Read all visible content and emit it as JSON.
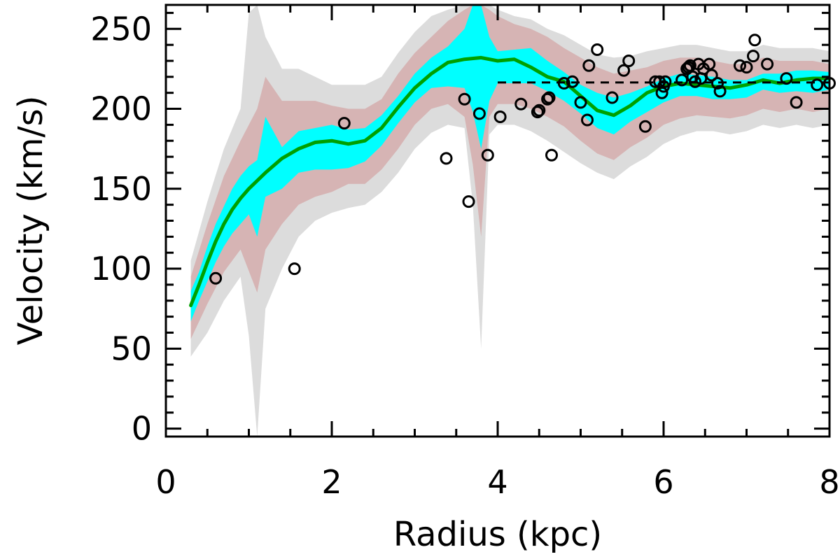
{
  "chart_data": {
    "type": "line",
    "xlabel": "Radius (kpc)",
    "ylabel": "Velocity (km/s)",
    "xlim": [
      0,
      8
    ],
    "ylim": [
      -5,
      265
    ],
    "xticks": [
      0,
      2,
      4,
      6,
      8
    ],
    "yticks": [
      0,
      50,
      100,
      150,
      200,
      250
    ],
    "grid": false,
    "colors": {
      "model_line": "#00a000",
      "band_inner": "#00ffff",
      "band_middle": "#d6b4b4",
      "band_outer": "#dcdcdc",
      "points": "#000000",
      "reference_line": "#000000"
    },
    "model_curve": {
      "x": [
        0.3,
        0.4,
        0.5,
        0.6,
        0.7,
        0.8,
        0.9,
        1.0,
        1.2,
        1.4,
        1.6,
        1.8,
        2.0,
        2.2,
        2.4,
        2.6,
        2.8,
        3.0,
        3.2,
        3.4,
        3.6,
        3.8,
        4.0,
        4.2,
        4.4,
        4.6,
        4.8,
        5.0,
        5.2,
        5.4,
        5.6,
        5.8,
        6.0,
        6.2,
        6.4,
        6.6,
        6.8,
        7.0,
        7.2,
        7.4,
        7.6,
        7.8,
        8.0
      ],
      "y": [
        77,
        90,
        104,
        117,
        128,
        137,
        144,
        150,
        160,
        169,
        175,
        179,
        180,
        178,
        180,
        188,
        201,
        213,
        222,
        229,
        231,
        232,
        230,
        231,
        226,
        220,
        217,
        208,
        199,
        196,
        202,
        210,
        214,
        216,
        215,
        214,
        213,
        215,
        218,
        216,
        218,
        219,
        219
      ]
    },
    "band_inner": {
      "x": [
        0.3,
        0.4,
        0.5,
        0.6,
        0.7,
        0.8,
        0.9,
        1.0,
        1.1,
        1.2,
        1.4,
        1.6,
        1.8,
        2.0,
        2.2,
        2.4,
        2.6,
        2.8,
        3.0,
        3.2,
        3.4,
        3.6,
        3.7,
        3.8,
        3.9,
        4.0,
        4.2,
        4.4,
        4.6,
        4.8,
        5.0,
        5.2,
        5.4,
        5.6,
        5.8,
        6.0,
        6.2,
        6.4,
        6.6,
        6.8,
        7.0,
        7.2,
        7.4,
        7.6,
        7.8,
        8.0
      ],
      "upper": [
        86,
        98,
        114,
        128,
        139,
        150,
        158,
        164,
        168,
        195,
        176,
        186,
        188,
        190,
        187,
        188,
        196,
        208,
        222,
        232,
        239,
        250,
        275,
        282,
        245,
        236,
        237,
        238,
        230,
        223,
        215,
        210,
        207,
        210,
        214,
        219,
        222,
        221,
        220,
        218,
        218,
        222,
        222,
        224,
        224,
        223
      ],
      "lower": [
        67,
        80,
        92,
        104,
        114,
        122,
        128,
        134,
        120,
        145,
        150,
        160,
        162,
        162,
        163,
        167,
        177,
        191,
        204,
        213,
        214,
        213,
        198,
        175,
        205,
        216,
        216,
        216,
        211,
        205,
        197,
        188,
        184,
        192,
        198,
        204,
        208,
        208,
        206,
        206,
        207,
        212,
        210,
        211,
        210,
        212
      ]
    },
    "band_middle": {
      "x": [
        0.3,
        0.5,
        0.7,
        0.9,
        1.1,
        1.2,
        1.4,
        1.6,
        1.8,
        2.0,
        2.2,
        2.4,
        2.6,
        2.8,
        3.0,
        3.2,
        3.4,
        3.6,
        3.7,
        3.8,
        3.9,
        4.0,
        4.2,
        4.4,
        4.6,
        4.8,
        5.0,
        5.2,
        5.4,
        5.6,
        5.8,
        6.0,
        6.2,
        6.4,
        6.6,
        6.8,
        7.0,
        7.2,
        7.4,
        7.6,
        7.8,
        8.0
      ],
      "upper": [
        95,
        128,
        158,
        180,
        200,
        220,
        205,
        205,
        205,
        202,
        200,
        200,
        206,
        222,
        235,
        245,
        255,
        262,
        280,
        282,
        262,
        258,
        253,
        250,
        245,
        238,
        232,
        226,
        222,
        224,
        226,
        230,
        232,
        232,
        230,
        228,
        228,
        232,
        230,
        230,
        230,
        228
      ],
      "lower": [
        56,
        78,
        98,
        112,
        85,
        112,
        128,
        140,
        145,
        148,
        153,
        153,
        162,
        175,
        190,
        200,
        203,
        195,
        165,
        120,
        195,
        203,
        203,
        200,
        195,
        189,
        180,
        172,
        168,
        176,
        182,
        190,
        194,
        196,
        195,
        194,
        196,
        200,
        198,
        200,
        198,
        200
      ]
    },
    "band_outer": {
      "x": [
        0.3,
        0.5,
        0.7,
        0.9,
        1.0,
        1.1,
        1.2,
        1.4,
        1.6,
        1.8,
        2.0,
        2.2,
        2.4,
        2.6,
        2.8,
        3.0,
        3.2,
        3.4,
        3.6,
        3.7,
        3.8,
        3.9,
        4.0,
        4.2,
        4.4,
        4.6,
        4.8,
        5.0,
        5.2,
        5.4,
        5.6,
        5.8,
        6.0,
        6.2,
        6.4,
        6.6,
        6.8,
        7.0,
        7.2,
        7.4,
        7.6,
        7.8,
        8.0
      ],
      "upper": [
        105,
        142,
        175,
        200,
        260,
        265,
        245,
        225,
        225,
        220,
        215,
        215,
        215,
        220,
        235,
        248,
        258,
        262,
        265,
        282,
        282,
        270,
        262,
        258,
        256,
        250,
        246,
        240,
        234,
        232,
        233,
        236,
        238,
        240,
        240,
        238,
        236,
        236,
        240,
        238,
        238,
        238,
        236
      ],
      "lower": [
        45,
        60,
        80,
        95,
        58,
        -5,
        75,
        100,
        120,
        130,
        135,
        138,
        140,
        148,
        160,
        175,
        185,
        190,
        188,
        140,
        50,
        184,
        190,
        190,
        186,
        180,
        173,
        166,
        160,
        156,
        164,
        170,
        178,
        183,
        186,
        186,
        184,
        186,
        190,
        188,
        190,
        188,
        190
      ]
    },
    "observed_points": {
      "x": [
        0.6,
        1.55,
        2.15,
        3.38,
        3.6,
        3.65,
        3.78,
        3.88,
        4.03,
        4.28,
        4.48,
        4.5,
        4.6,
        4.62,
        4.65,
        4.8,
        4.9,
        5.0,
        5.08,
        5.1,
        5.2,
        5.38,
        5.52,
        5.58,
        5.78,
        5.9,
        5.95,
        5.98,
        6.0,
        6.02,
        6.22,
        6.28,
        6.3,
        6.32,
        6.35,
        6.38,
        6.42,
        6.45,
        6.48,
        6.55,
        6.58,
        6.65,
        6.68,
        6.92,
        7.0,
        7.08,
        7.1,
        7.25,
        7.48,
        7.6,
        7.85,
        8.0
      ],
      "y": [
        94,
        100,
        191,
        169,
        206,
        142,
        197,
        171,
        195,
        203,
        198,
        199,
        206,
        207,
        171,
        216,
        217,
        204,
        193,
        227,
        237,
        207,
        224,
        230,
        189,
        217,
        217,
        210,
        214,
        217,
        218,
        225,
        226,
        227,
        220,
        217,
        228,
        219,
        225,
        228,
        221,
        216,
        211,
        227,
        226,
        233,
        243,
        228,
        219,
        204,
        215,
        216
      ]
    },
    "reference_line": {
      "x": [
        4.0,
        8.0
      ],
      "y": 216.5
    }
  }
}
